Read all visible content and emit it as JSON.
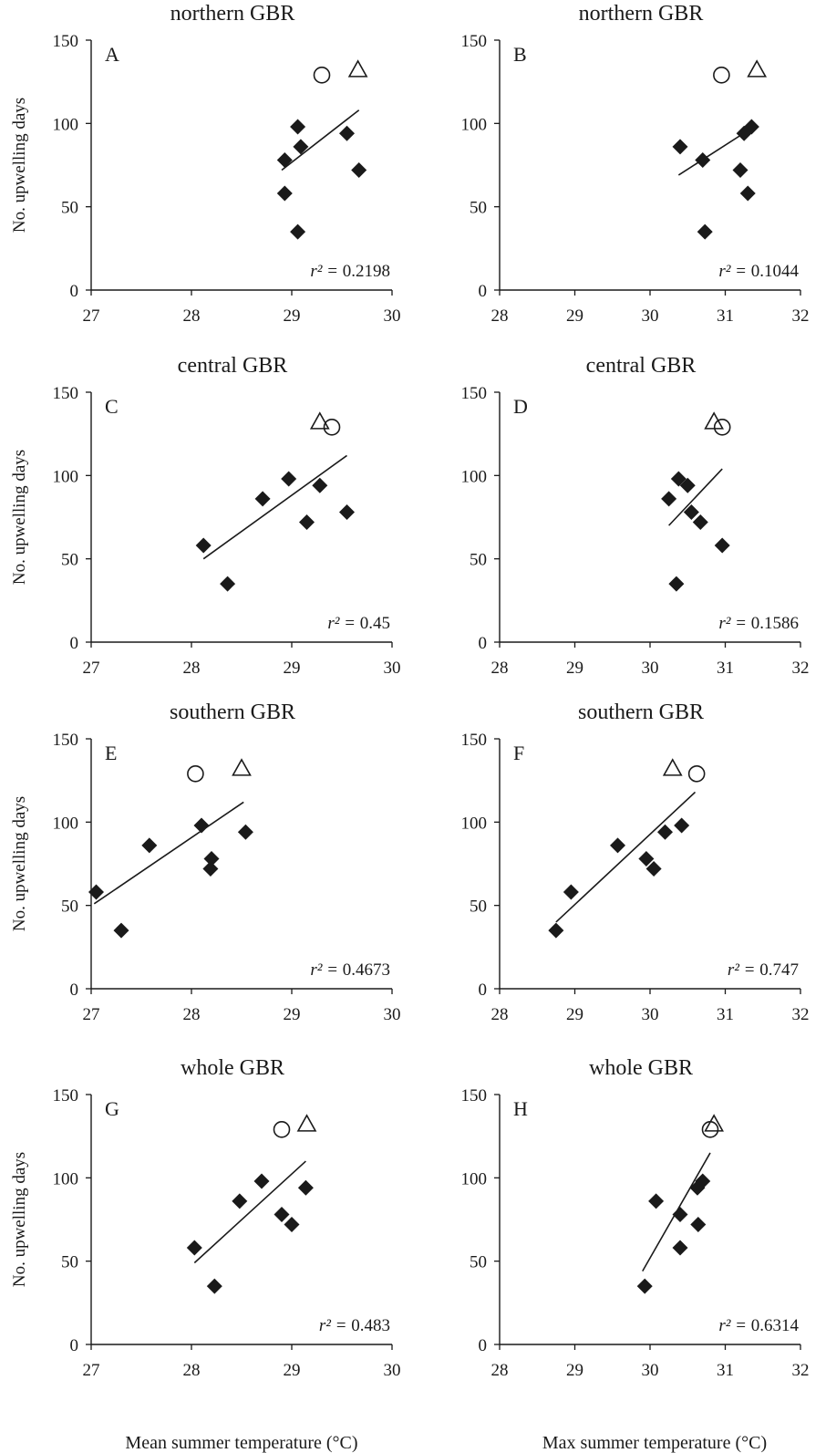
{
  "y_axis_label": "No. upwelling days",
  "x_axis_labels": {
    "left": "Mean summer  temperature (°C)",
    "right": "Max summer  temperature (°C)"
  },
  "chart_data": [
    {
      "type": "scatter",
      "label": "A",
      "title": "northern GBR",
      "xlim": [
        27,
        30
      ],
      "xticks": [
        27,
        28,
        29,
        30
      ],
      "ylim": [
        0,
        150
      ],
      "yticks": [
        0,
        50,
        100,
        150
      ],
      "r2_prefix": "r² = ",
      "r2_value": "0.2198",
      "diamonds": [
        {
          "x": 28.93,
          "y": 78
        },
        {
          "x": 28.93,
          "y": 58
        },
        {
          "x": 29.06,
          "y": 98
        },
        {
          "x": 29.09,
          "y": 86
        },
        {
          "x": 29.06,
          "y": 35
        },
        {
          "x": 29.55,
          "y": 94
        },
        {
          "x": 29.67,
          "y": 72
        }
      ],
      "trendline": {
        "x": [
          28.9,
          29.67
        ],
        "y": [
          72,
          108
        ]
      },
      "circle": {
        "x": 29.3,
        "y": 129
      },
      "triangle": {
        "x": 29.66,
        "y": 132
      }
    },
    {
      "type": "scatter",
      "label": "B",
      "title": "northern GBR",
      "xlim": [
        28,
        32
      ],
      "xticks": [
        28,
        29,
        30,
        31,
        32
      ],
      "ylim": [
        0,
        150
      ],
      "yticks": [
        0,
        50,
        100,
        150
      ],
      "r2_prefix": "r² = ",
      "r2_value": "0.1044",
      "diamonds": [
        {
          "x": 30.4,
          "y": 86
        },
        {
          "x": 30.7,
          "y": 78
        },
        {
          "x": 30.73,
          "y": 35
        },
        {
          "x": 31.2,
          "y": 72
        },
        {
          "x": 31.25,
          "y": 94
        },
        {
          "x": 31.35,
          "y": 98
        },
        {
          "x": 31.3,
          "y": 58
        }
      ],
      "trendline": {
        "x": [
          30.38,
          31.38
        ],
        "y": [
          69,
          98
        ]
      },
      "circle": {
        "x": 30.95,
        "y": 129
      },
      "triangle": {
        "x": 31.42,
        "y": 132
      }
    },
    {
      "type": "scatter",
      "label": "C",
      "title": "central GBR",
      "xlim": [
        27,
        30
      ],
      "xticks": [
        27,
        28,
        29,
        30
      ],
      "ylim": [
        0,
        150
      ],
      "yticks": [
        0,
        50,
        100,
        150
      ],
      "r2_prefix": "r² = ",
      "r2_value": "0.45",
      "diamonds": [
        {
          "x": 28.12,
          "y": 58
        },
        {
          "x": 28.36,
          "y": 35
        },
        {
          "x": 28.71,
          "y": 86
        },
        {
          "x": 28.97,
          "y": 98
        },
        {
          "x": 29.15,
          "y": 72
        },
        {
          "x": 29.28,
          "y": 94
        },
        {
          "x": 29.55,
          "y": 78
        }
      ],
      "trendline": {
        "x": [
          28.12,
          29.55
        ],
        "y": [
          50,
          112
        ]
      },
      "circle": {
        "x": 29.4,
        "y": 129
      },
      "triangle": {
        "x": 29.28,
        "y": 132
      }
    },
    {
      "type": "scatter",
      "label": "D",
      "title": "central GBR",
      "xlim": [
        28,
        32
      ],
      "xticks": [
        28,
        29,
        30,
        31,
        32
      ],
      "ylim": [
        0,
        150
      ],
      "yticks": [
        0,
        50,
        100,
        150
      ],
      "r2_prefix": "r² = ",
      "r2_value": "0.1586",
      "diamonds": [
        {
          "x": 30.25,
          "y": 86
        },
        {
          "x": 30.38,
          "y": 98
        },
        {
          "x": 30.5,
          "y": 94
        },
        {
          "x": 30.55,
          "y": 78
        },
        {
          "x": 30.67,
          "y": 72
        },
        {
          "x": 30.96,
          "y": 58
        },
        {
          "x": 30.35,
          "y": 35
        }
      ],
      "trendline": {
        "x": [
          30.25,
          30.96
        ],
        "y": [
          70,
          104
        ]
      },
      "circle": {
        "x": 30.96,
        "y": 129
      },
      "triangle": {
        "x": 30.85,
        "y": 132
      }
    },
    {
      "type": "scatter",
      "label": "E",
      "title": "southern GBR",
      "xlim": [
        27,
        30
      ],
      "xticks": [
        27,
        28,
        29,
        30
      ],
      "ylim": [
        0,
        150
      ],
      "yticks": [
        0,
        50,
        100,
        150
      ],
      "r2_prefix": "r² = ",
      "r2_value": "0.4673",
      "diamonds": [
        {
          "x": 27.05,
          "y": 58
        },
        {
          "x": 27.3,
          "y": 35
        },
        {
          "x": 27.58,
          "y": 86
        },
        {
          "x": 28.1,
          "y": 98
        },
        {
          "x": 28.19,
          "y": 72
        },
        {
          "x": 28.2,
          "y": 78
        },
        {
          "x": 28.54,
          "y": 94
        }
      ],
      "trendline": {
        "x": [
          27.03,
          28.52
        ],
        "y": [
          51,
          112
        ]
      },
      "circle": {
        "x": 28.04,
        "y": 129
      },
      "triangle": {
        "x": 28.5,
        "y": 132
      }
    },
    {
      "type": "scatter",
      "label": "F",
      "title": "southern GBR",
      "xlim": [
        28,
        32
      ],
      "xticks": [
        28,
        29,
        30,
        31,
        32
      ],
      "ylim": [
        0,
        150
      ],
      "yticks": [
        0,
        50,
        100,
        150
      ],
      "r2_prefix": "r² = ",
      "r2_value": "0.747",
      "diamonds": [
        {
          "x": 28.75,
          "y": 35
        },
        {
          "x": 28.95,
          "y": 58
        },
        {
          "x": 29.57,
          "y": 86
        },
        {
          "x": 29.95,
          "y": 78
        },
        {
          "x": 30.05,
          "y": 72
        },
        {
          "x": 30.2,
          "y": 94
        },
        {
          "x": 30.42,
          "y": 98
        }
      ],
      "trendline": {
        "x": [
          28.75,
          30.6
        ],
        "y": [
          40,
          118
        ]
      },
      "circle": {
        "x": 30.62,
        "y": 129
      },
      "triangle": {
        "x": 30.3,
        "y": 132
      }
    },
    {
      "type": "scatter",
      "label": "G",
      "title": "whole GBR",
      "xlim": [
        27,
        30
      ],
      "xticks": [
        27,
        28,
        29,
        30
      ],
      "ylim": [
        0,
        150
      ],
      "yticks": [
        0,
        50,
        100,
        150
      ],
      "r2_prefix": "r² = ",
      "r2_value": "0.483",
      "diamonds": [
        {
          "x": 28.03,
          "y": 58
        },
        {
          "x": 28.23,
          "y": 35
        },
        {
          "x": 28.48,
          "y": 86
        },
        {
          "x": 28.7,
          "y": 98
        },
        {
          "x": 28.9,
          "y": 78
        },
        {
          "x": 29.0,
          "y": 72
        },
        {
          "x": 29.14,
          "y": 94
        }
      ],
      "trendline": {
        "x": [
          28.03,
          29.14
        ],
        "y": [
          49,
          110
        ]
      },
      "circle": {
        "x": 28.9,
        "y": 129
      },
      "triangle": {
        "x": 29.15,
        "y": 132
      }
    },
    {
      "type": "scatter",
      "label": "H",
      "title": "whole GBR",
      "xlim": [
        28,
        32
      ],
      "xticks": [
        28,
        29,
        30,
        31,
        32
      ],
      "ylim": [
        0,
        150
      ],
      "yticks": [
        0,
        50,
        100,
        150
      ],
      "r2_prefix": "r² = ",
      "r2_value": "0.6314",
      "diamonds": [
        {
          "x": 29.93,
          "y": 35
        },
        {
          "x": 30.08,
          "y": 86
        },
        {
          "x": 30.4,
          "y": 78
        },
        {
          "x": 30.4,
          "y": 58
        },
        {
          "x": 30.63,
          "y": 94
        },
        {
          "x": 30.64,
          "y": 72
        },
        {
          "x": 30.7,
          "y": 98
        }
      ],
      "trendline": {
        "x": [
          29.9,
          30.8
        ],
        "y": [
          44,
          115
        ]
      },
      "circle": {
        "x": 30.8,
        "y": 129
      },
      "triangle": {
        "x": 30.85,
        "y": 132
      }
    }
  ]
}
